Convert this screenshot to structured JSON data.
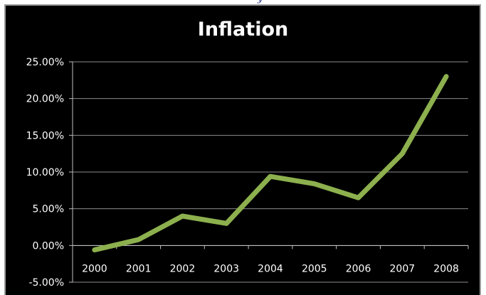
{
  "chart_data": {
    "type": "line",
    "title": "Inflation",
    "xlabel": "",
    "ylabel": "",
    "categories": [
      "2000",
      "2001",
      "2002",
      "2003",
      "2004",
      "2005",
      "2006",
      "2007",
      "2008"
    ],
    "series": [
      {
        "values": [
          -0.6,
          0.8,
          4.0,
          3.0,
          9.4,
          8.4,
          6.5,
          12.5,
          23.0
        ]
      }
    ],
    "ylim": [
      -5,
      25
    ],
    "yticks": [
      25,
      20,
      15,
      10,
      5,
      0,
      -5
    ],
    "ytick_labels": [
      "25.00%",
      "20.00%",
      "15.00%",
      "10.00%",
      "5.00%",
      "0.00%",
      "-5.00%"
    ],
    "grid": true,
    "legend": "none",
    "colors": {
      "line": "#8db04e",
      "background": "#000000",
      "grid": "#8c8c8c",
      "text": "#ffffff"
    }
  }
}
